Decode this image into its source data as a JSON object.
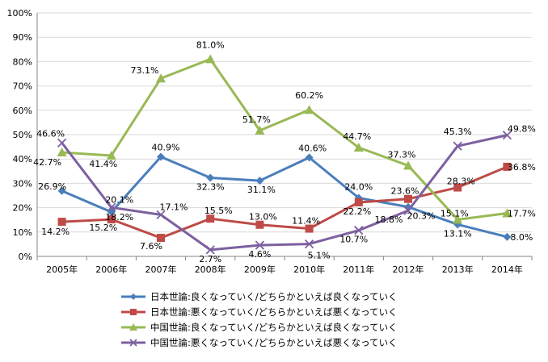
{
  "chart_data": {
    "type": "line",
    "title": "",
    "xlabel": "",
    "ylabel": "",
    "ylim": [
      0,
      100
    ],
    "yticks": [
      "0%",
      "10%",
      "20%",
      "30%",
      "40%",
      "50%",
      "60%",
      "70%",
      "80%",
      "90%",
      "100%"
    ],
    "categories": [
      "2005年",
      "2006年",
      "2007年",
      "2008年",
      "2009年",
      "2010年",
      "2011年",
      "2012年",
      "2013年",
      "2014年"
    ],
    "grid": true,
    "legend_position": "bottom",
    "series": [
      {
        "name": "日本世論:良くなっていく/どちらかといえば良くなっていく",
        "marker": "diamond",
        "color": "#4a7ebb",
        "values": [
          26.9,
          18.2,
          40.9,
          32.3,
          31.1,
          40.6,
          24.0,
          20.3,
          13.1,
          8.0
        ],
        "labels": [
          "26.9%",
          "18.2%",
          "40.9%",
          "32.3%",
          "31.1%",
          "40.6%",
          "24.0%",
          "20.3%",
          "13.1%",
          "8.0%"
        ]
      },
      {
        "name": "日本世論:悪くなっていく/どちらかといえば悪くなっていく",
        "marker": "square",
        "color": "#be4b48",
        "values": [
          14.2,
          15.2,
          7.6,
          15.5,
          13.0,
          11.4,
          22.2,
          23.6,
          28.3,
          36.8
        ],
        "labels": [
          "14.2%",
          "15.2%",
          "7.6%",
          "15.5%",
          "13.0%",
          "11.4%",
          "22.2%",
          "23.6%",
          "28.3%",
          "36.8%"
        ]
      },
      {
        "name": "中国世論:良くなっていく/どちらかといえば良くなっていく",
        "marker": "triangle",
        "color": "#98b954",
        "values": [
          42.7,
          41.4,
          73.1,
          81.0,
          51.7,
          60.2,
          44.7,
          37.3,
          15.1,
          17.7
        ],
        "labels": [
          "42.7%",
          "41.4%",
          "73.1%",
          "81.0%",
          "51.7%",
          "60.2%",
          "44.7%",
          "37.3%",
          "15.1%",
          "17.7%"
        ]
      },
      {
        "name": "中国世論:悪くなっていく/どちらかといえば悪くなっていく",
        "marker": "x",
        "color": "#7d60a0",
        "values": [
          46.6,
          20.1,
          17.1,
          2.7,
          4.6,
          5.1,
          10.7,
          18.8,
          45.3,
          49.8
        ],
        "labels": [
          "46.6%",
          "20.1%",
          "17.1%",
          "2.7%",
          "4.6%",
          "5.1%",
          "10.7%",
          "18.8%",
          "45.3%",
          "49.8%"
        ]
      }
    ]
  }
}
